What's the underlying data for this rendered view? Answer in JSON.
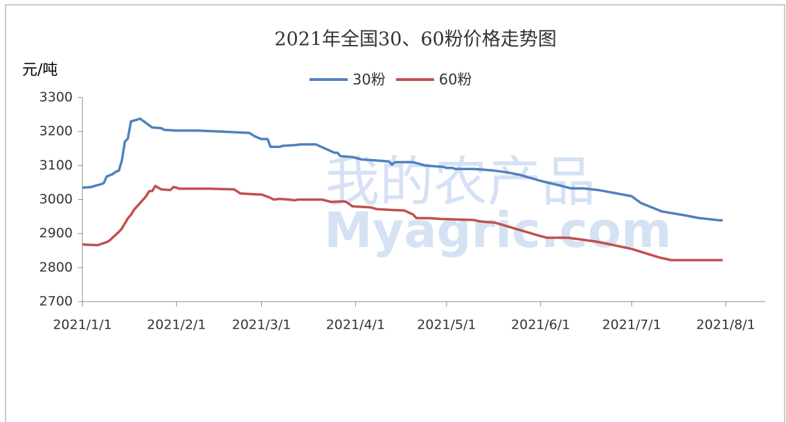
{
  "chart_data": {
    "type": "line",
    "title": "2021年全国30、60粉价格走势图",
    "y_label": "元/吨",
    "watermark": [
      "我的农产品",
      "Myagric.com"
    ],
    "xlim": [
      "2021/1/1",
      "2021/8/1"
    ],
    "xticks": [
      "2021/1/1",
      "2021/2/1",
      "2021/3/1",
      "2021/4/1",
      "2021/5/1",
      "2021/6/1",
      "2021/7/1",
      "2021/8/1"
    ],
    "ylim": [
      2700,
      3300
    ],
    "yticks": [
      2700,
      2800,
      2900,
      3000,
      3100,
      3200,
      3300
    ],
    "legend": "top",
    "series": [
      {
        "name": "30粉",
        "color": "#4f81bd",
        "x": [
          "2021/1/1",
          "2021/1/4",
          "2021/1/5",
          "2021/1/7",
          "2021/1/8",
          "2021/1/9",
          "2021/1/11",
          "2021/1/12",
          "2021/1/13",
          "2021/1/14",
          "2021/1/15",
          "2021/1/16",
          "2021/1/17",
          "2021/1/19",
          "2021/1/20",
          "2021/1/22",
          "2021/1/24",
          "2021/1/27",
          "2021/1/28",
          "2021/2/1",
          "2021/2/8",
          "2021/2/16",
          "2021/2/25",
          "2021/2/27",
          "2021/3/1",
          "2021/3/3",
          "2021/3/4",
          "2021/3/7",
          "2021/3/8",
          "2021/3/12",
          "2021/3/14",
          "2021/3/19",
          "2021/3/22",
          "2021/3/25",
          "2021/3/26",
          "2021/3/27",
          "2021/3/31",
          "2021/4/3",
          "2021/4/8",
          "2021/4/12",
          "2021/4/13",
          "2021/4/14",
          "2021/4/20",
          "2021/4/24",
          "2021/4/30",
          "2021/5/1",
          "2021/5/3",
          "2021/5/4",
          "2021/5/10",
          "2021/5/16",
          "2021/5/21",
          "2021/5/25",
          "2021/6/1",
          "2021/6/8",
          "2021/6/11",
          "2021/6/15",
          "2021/6/20",
          "2021/7/1",
          "2021/7/4",
          "2021/7/11",
          "2021/7/19",
          "2021/7/23",
          "2021/7/30",
          "2021/7/31"
        ],
        "values": [
          3035,
          3037,
          3040,
          3045,
          3048,
          3068,
          3075,
          3082,
          3085,
          3115,
          3170,
          3180,
          3230,
          3235,
          3238,
          3225,
          3212,
          3210,
          3205,
          3203,
          3203,
          3200,
          3196,
          3185,
          3178,
          3178,
          3155,
          3155,
          3158,
          3160,
          3162,
          3162,
          3150,
          3138,
          3138,
          3128,
          3125,
          3118,
          3115,
          3112,
          3103,
          3110,
          3110,
          3100,
          3096,
          3093,
          3093,
          3090,
          3090,
          3086,
          3080,
          3073,
          3055,
          3040,
          3033,
          3033,
          3028,
          3010,
          2990,
          2965,
          2953,
          2946,
          2939,
          2939
        ]
      },
      {
        "name": "60粉",
        "color": "#c0504d",
        "x": [
          "2021/1/1",
          "2021/1/6",
          "2021/1/9",
          "2021/1/10",
          "2021/1/13",
          "2021/1/14",
          "2021/1/16",
          "2021/1/17",
          "2021/1/18",
          "2021/1/20",
          "2021/1/22",
          "2021/1/23",
          "2021/1/24",
          "2021/1/25",
          "2021/1/26",
          "2021/1/27",
          "2021/1/30",
          "2021/1/31",
          "2021/2/1",
          "2021/2/2",
          "2021/2/12",
          "2021/2/20",
          "2021/2/22",
          "2021/2/28",
          "2021/3/1",
          "2021/3/4",
          "2021/3/5",
          "2021/3/7",
          "2021/3/10",
          "2021/3/12",
          "2021/3/13",
          "2021/3/21",
          "2021/3/24",
          "2021/3/28",
          "2021/3/29",
          "2021/3/31",
          "2021/4/6",
          "2021/4/8",
          "2021/4/12",
          "2021/4/17",
          "2021/4/20",
          "2021/4/21",
          "2021/4/26",
          "2021/4/29",
          "2021/5/10",
          "2021/5/12",
          "2021/5/17",
          "2021/5/31",
          "2021/6/3",
          "2021/6/10",
          "2021/6/19",
          "2021/6/23",
          "2021/7/1",
          "2021/7/10",
          "2021/7/14",
          "2021/7/31"
        ],
        "values": [
          2868,
          2866,
          2875,
          2880,
          2905,
          2915,
          2945,
          2955,
          2970,
          2990,
          3010,
          3025,
          3025,
          3040,
          3035,
          3030,
          3028,
          3037,
          3035,
          3032,
          3032,
          3030,
          3018,
          3015,
          3015,
          3005,
          3000,
          3002,
          3000,
          2998,
          3000,
          3000,
          2993,
          2995,
          2993,
          2980,
          2977,
          2972,
          2970,
          2968,
          2956,
          2946,
          2945,
          2943,
          2940,
          2936,
          2932,
          2895,
          2888,
          2888,
          2877,
          2870,
          2855,
          2830,
          2822,
          2822
        ]
      }
    ]
  }
}
